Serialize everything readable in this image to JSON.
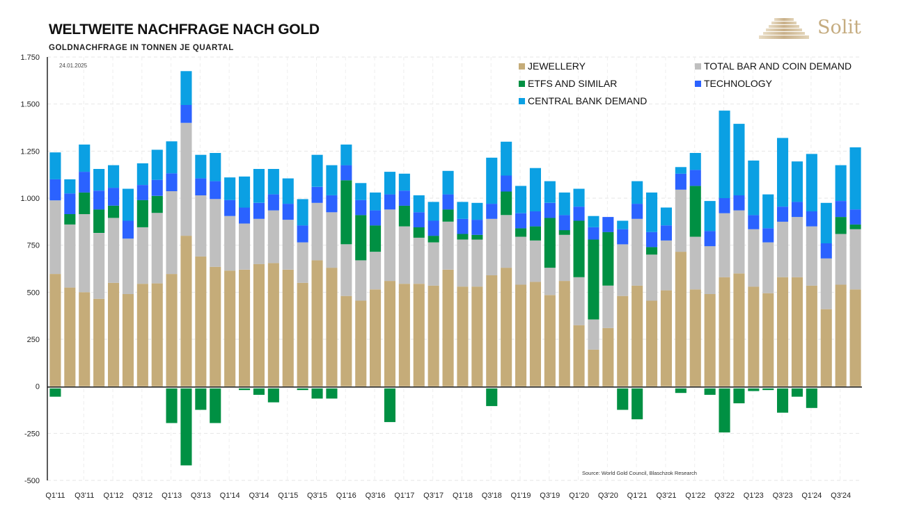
{
  "header": {
    "title": "WELTWEITE NACHFRAGE NACH GOLD",
    "subtitle": "GOLDNACHFRAGE IN TONNEN JE QUARTAL",
    "date": "24.01.2025",
    "logo_text": "Solit",
    "logo_icon": "stepped-pyramid-icon"
  },
  "source": "Source: World Gold Council, Blaschzok Research",
  "colors": {
    "jewellery": "#c5ac79",
    "bar_coin": "#bfbfbf",
    "etfs": "#009043",
    "technology": "#2b62ff",
    "central_bank": "#0ba0e3"
  },
  "chart_data": {
    "type": "bar",
    "stacked": true,
    "title": "WELTWEITE NACHFRAGE NACH GOLD",
    "subtitle": "GOLDNACHFRAGE IN TONNEN JE QUARTAL",
    "xlabel": "",
    "ylabel": "",
    "ylim": [
      -500,
      1750
    ],
    "yticks": [
      -500,
      -250,
      0,
      250,
      500,
      750,
      1000,
      1250,
      1500,
      1750
    ],
    "ytick_labels": [
      "-500",
      "-250",
      "0",
      "250",
      "500",
      "750",
      "1.000",
      "1.250",
      "1.500",
      "1.750"
    ],
    "grid": true,
    "legend_position": "top-right",
    "categories": [
      "Q1'11",
      "Q2'11",
      "Q3'11",
      "Q4'11",
      "Q1'12",
      "Q2'12",
      "Q3'12",
      "Q4'12",
      "Q1'13",
      "Q2'13",
      "Q3'13",
      "Q4'13",
      "Q1'14",
      "Q2'14",
      "Q3'14",
      "Q4'14",
      "Q1'15",
      "Q2'15",
      "Q3'15",
      "Q4'15",
      "Q1'16",
      "Q2'16",
      "Q3'16",
      "Q4'16",
      "Q1'17",
      "Q2'17",
      "Q3'17",
      "Q4'17",
      "Q1'18",
      "Q2'18",
      "Q3'18",
      "Q4'18",
      "Q1'19",
      "Q2'19",
      "Q3'19",
      "Q4'19",
      "Q1'20",
      "Q2'20",
      "Q3'20",
      "Q4'20",
      "Q1'21",
      "Q2'21",
      "Q3'21",
      "Q4'21",
      "Q1'22",
      "Q2'22",
      "Q3'22",
      "Q4'22",
      "Q1'23",
      "Q2'23",
      "Q3'23",
      "Q4'23",
      "Q1'24",
      "Q2'24",
      "Q3'24",
      "Q4'24"
    ],
    "xtick_labels": [
      "Q1'11",
      "Q3'11",
      "Q1'12",
      "Q3'12",
      "Q1'13",
      "Q3'13",
      "Q1'14",
      "Q3'14",
      "Q1'15",
      "Q3'15",
      "Q1'16",
      "Q3'16",
      "Q1'17",
      "Q3'17",
      "Q1'18",
      "Q3'18",
      "Q1'19",
      "Q3'19",
      "Q1'20",
      "Q3'20",
      "Q1'21",
      "Q3'21",
      "Q1'22",
      "Q3'22",
      "Q1'23",
      "Q3'23",
      "Q1'24",
      "Q3'24"
    ],
    "series": [
      {
        "name": "JEWELLERY",
        "key": "jewellery",
        "values": [
          597,
          525,
          500,
          465,
          550,
          490,
          545,
          547,
          597,
          800,
          690,
          635,
          615,
          620,
          650,
          655,
          620,
          550,
          670,
          630,
          480,
          455,
          515,
          560,
          545,
          545,
          535,
          620,
          530,
          530,
          590,
          630,
          540,
          555,
          485,
          560,
          325,
          195,
          310,
          480,
          535,
          455,
          510,
          715,
          515,
          490,
          580,
          600,
          530,
          495,
          580,
          580,
          535,
          410,
          540,
          515
        ]
      },
      {
        "name": "TOTAL BAR AND COIN DEMAND",
        "key": "bar_coin",
        "values": [
          391,
          335,
          415,
          350,
          345,
          295,
          300,
          375,
          440,
          600,
          325,
          360,
          290,
          245,
          240,
          280,
          265,
          215,
          305,
          295,
          275,
          215,
          200,
          380,
          305,
          245,
          230,
          255,
          250,
          250,
          300,
          280,
          255,
          220,
          145,
          245,
          255,
          160,
          225,
          275,
          355,
          245,
          265,
          330,
          280,
          255,
          340,
          335,
          305,
          270,
          295,
          320,
          315,
          270,
          270,
          320
        ]
      },
      {
        "name": "ETFS AND SIMILAR",
        "key": "etfs",
        "values": [
          -55,
          55,
          115,
          125,
          65,
          0,
          145,
          90,
          -195,
          -420,
          -125,
          -195,
          0,
          -20,
          -45,
          -85,
          0,
          -20,
          -65,
          -65,
          340,
          240,
          140,
          -190,
          110,
          55,
          35,
          65,
          30,
          25,
          -105,
          125,
          45,
          75,
          265,
          25,
          300,
          425,
          285,
          -125,
          -175,
          40,
          0,
          -35,
          270,
          -45,
          -245,
          -90,
          -25,
          -20,
          -140,
          -55,
          -115,
          0,
          90,
          25
        ]
      },
      {
        "name": "TECHNOLOGY",
        "key": "technology",
        "values": [
          112,
          110,
          110,
          100,
          95,
          95,
          80,
          85,
          95,
          95,
          90,
          95,
          85,
          85,
          85,
          85,
          85,
          90,
          85,
          90,
          80,
          80,
          80,
          80,
          80,
          80,
          80,
          80,
          80,
          80,
          80,
          85,
          80,
          80,
          80,
          80,
          75,
          65,
          80,
          80,
          80,
          80,
          80,
          85,
          85,
          80,
          80,
          80,
          75,
          75,
          80,
          80,
          80,
          80,
          85,
          80
        ]
      },
      {
        "name": "CENTRAL BANK DEMAND",
        "key": "central_bank",
        "values": [
          143,
          75,
          145,
          115,
          120,
          170,
          115,
          160,
          170,
          180,
          125,
          150,
          120,
          165,
          180,
          135,
          135,
          140,
          170,
          160,
          110,
          90,
          95,
          120,
          90,
          90,
          100,
          125,
          90,
          90,
          245,
          180,
          145,
          230,
          115,
          120,
          95,
          60,
          0,
          45,
          120,
          210,
          95,
          35,
          90,
          160,
          465,
          380,
          290,
          180,
          365,
          215,
          305,
          215,
          190,
          330
        ]
      }
    ]
  }
}
